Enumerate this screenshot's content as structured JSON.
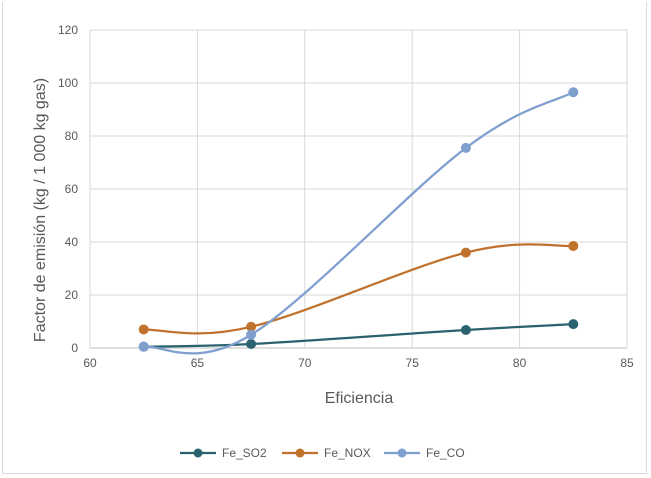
{
  "chart_data": {
    "type": "line",
    "smooth": true,
    "title": "",
    "xlabel": "Eficiencia",
    "ylabel": "Factor de emisión (kg / 1 000 kg gas)",
    "xlim": [
      60,
      85
    ],
    "ylim": [
      0,
      120
    ],
    "xticks": [
      60,
      65,
      70,
      75,
      80,
      85
    ],
    "yticks": [
      0,
      20,
      40,
      60,
      80,
      100,
      120
    ],
    "grid": true,
    "legend_position": "bottom",
    "x": [
      62.5,
      67.5,
      77.5,
      82.5
    ],
    "series": [
      {
        "name": "Fe_SO2",
        "color": "#2a6270",
        "values": [
          0.5,
          1.5,
          6.8,
          9.0
        ]
      },
      {
        "name": "Fe_NOX",
        "color": "#c0712c",
        "values": [
          7.0,
          8.0,
          36.0,
          38.5
        ]
      },
      {
        "name": "Fe_CO",
        "color": "#7f9fcf",
        "values": [
          0.5,
          5.0,
          75.5,
          96.5
        ]
      }
    ]
  }
}
